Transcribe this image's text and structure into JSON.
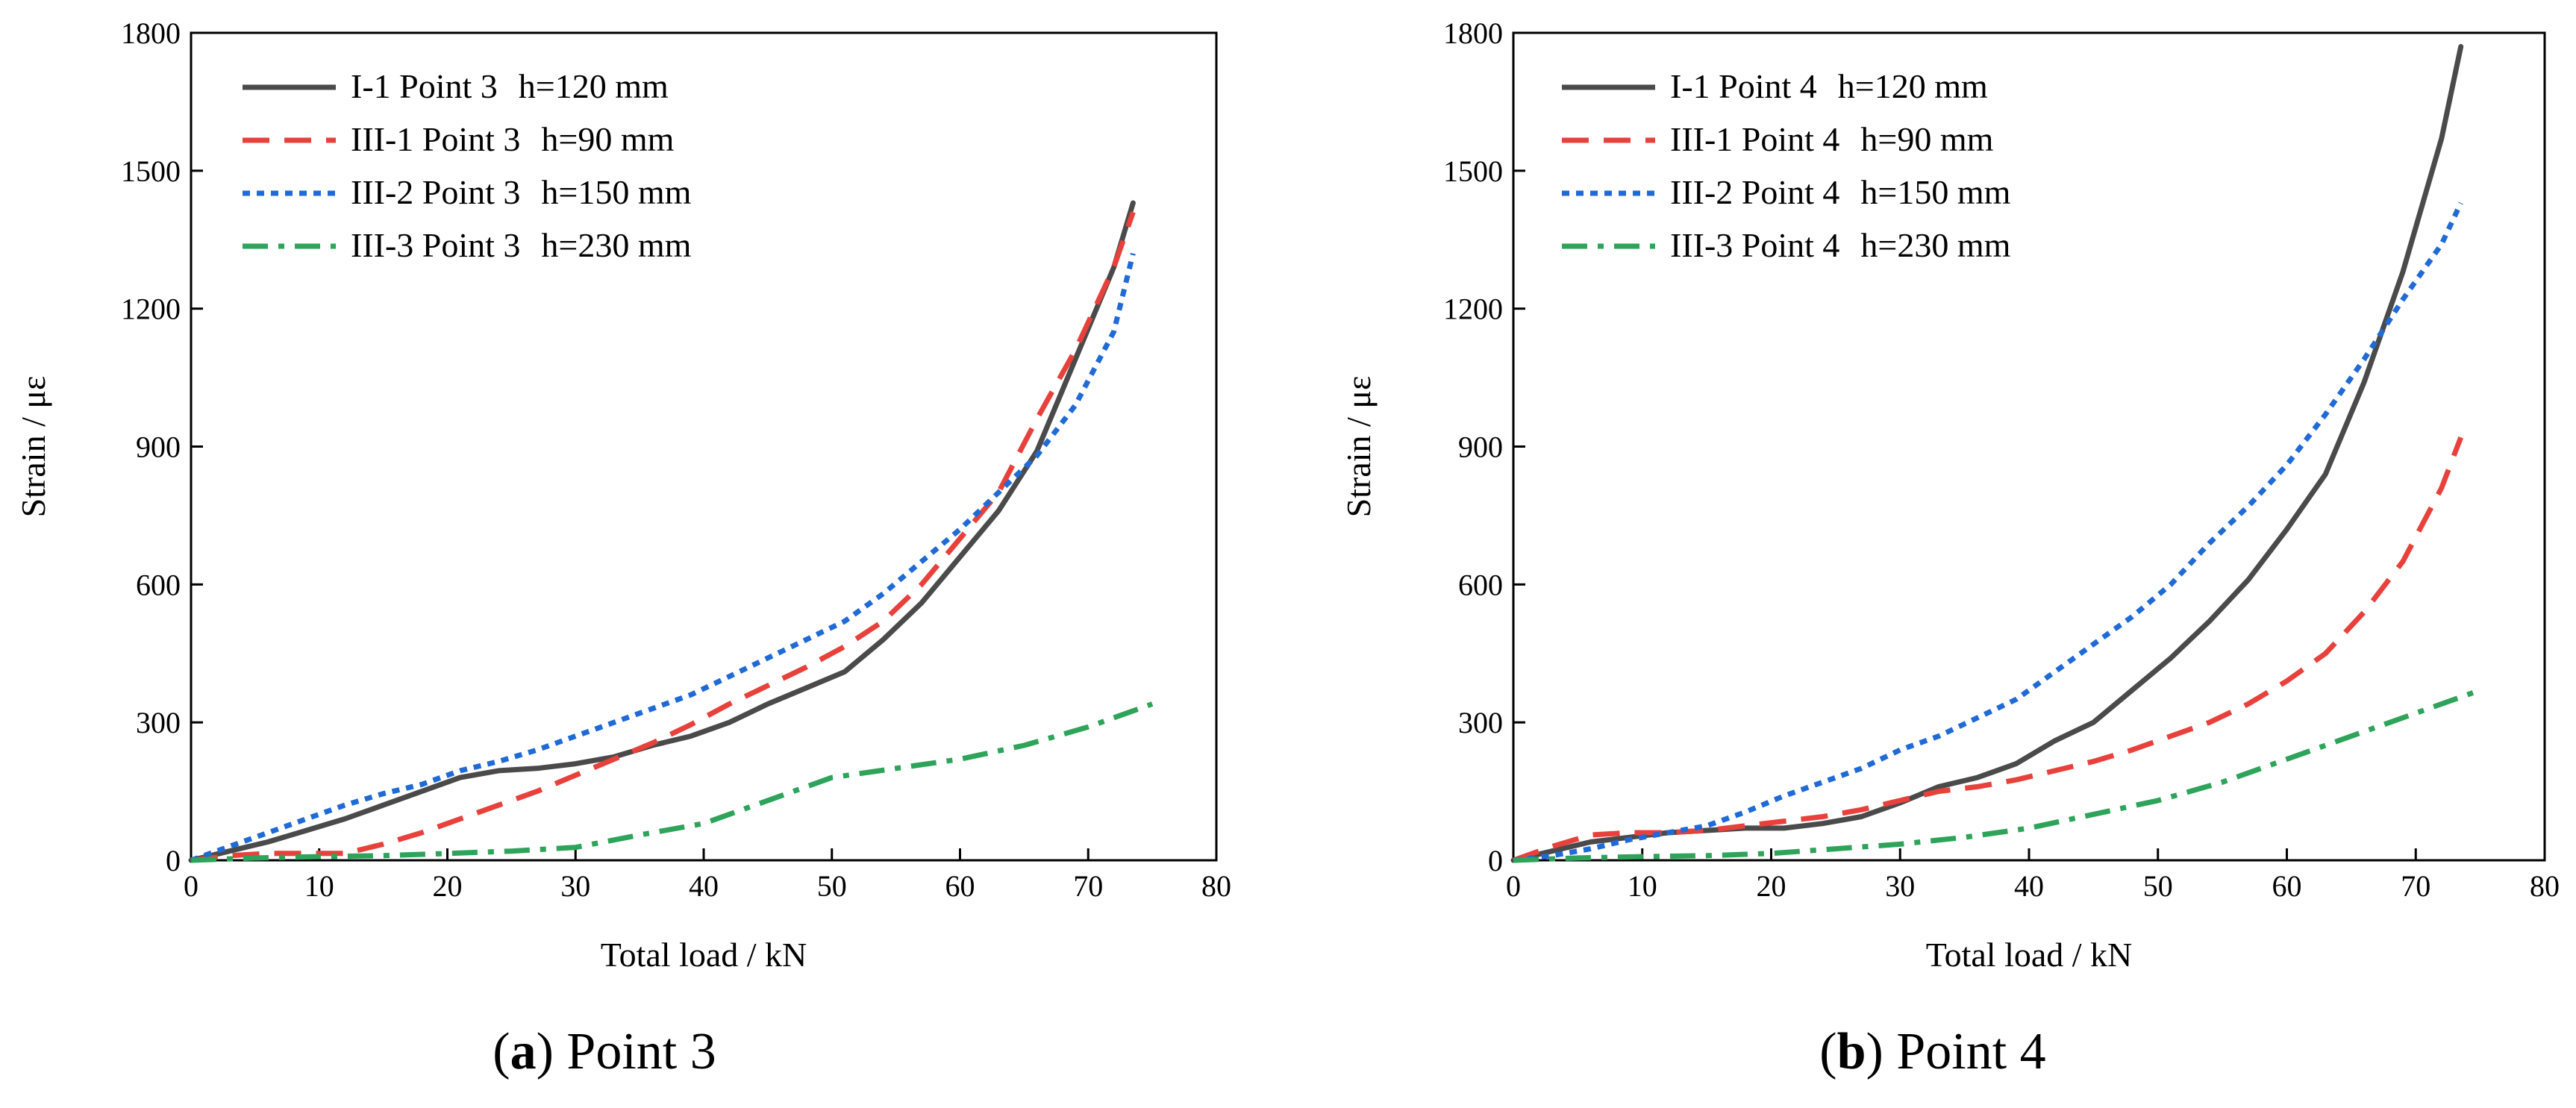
{
  "figure": {
    "panels": [
      {
        "caption_open": "(",
        "caption_letter": "a",
        "caption_close": ")",
        "caption_text": " Point 3"
      },
      {
        "caption_open": "(",
        "caption_letter": "b",
        "caption_close": ")",
        "caption_text": " Point 4"
      }
    ]
  },
  "chart_data": [
    {
      "type": "line",
      "title": "Point 3",
      "xlabel": "Total load / kN",
      "ylabel": "Strain / με",
      "xlim": [
        0,
        80
      ],
      "ylim": [
        0,
        1800
      ],
      "xticks": [
        0,
        10,
        20,
        30,
        40,
        50,
        60,
        70,
        80
      ],
      "yticks": [
        0,
        300,
        600,
        900,
        1200,
        1500,
        1800
      ],
      "grid": false,
      "legend_position": "top-left",
      "series": [
        {
          "name": "I-1 Point 3",
          "extra": "h=120 mm",
          "color": "#4a4a4a",
          "style": "solid",
          "x": [
            0,
            3,
            6,
            9,
            12,
            15,
            18,
            21,
            24,
            27,
            30,
            33,
            36,
            39,
            42,
            45,
            48,
            51,
            54,
            57,
            60,
            63,
            66,
            69,
            72,
            73.5
          ],
          "y": [
            0,
            20,
            40,
            65,
            90,
            120,
            150,
            180,
            195,
            200,
            210,
            225,
            250,
            270,
            300,
            340,
            375,
            410,
            480,
            560,
            660,
            760,
            890,
            1090,
            1290,
            1430
          ]
        },
        {
          "name": "III-1 Point 3",
          "extra": "h=90 mm",
          "color": "#e8413c",
          "style": "dash",
          "x": [
            0,
            3,
            6,
            9,
            12,
            15,
            18,
            21,
            24,
            27,
            30,
            33,
            36,
            39,
            42,
            45,
            48,
            51,
            54,
            57,
            60,
            63,
            66,
            69,
            72,
            73.5
          ],
          "y": [
            0,
            10,
            15,
            15,
            15,
            35,
            60,
            90,
            120,
            150,
            185,
            220,
            255,
            295,
            340,
            380,
            420,
            465,
            520,
            600,
            700,
            800,
            960,
            1110,
            1290,
            1410
          ]
        },
        {
          "name": "III-2 Point 3",
          "extra": "h=150 mm",
          "color": "#1f6ad6",
          "style": "dot",
          "x": [
            0,
            3,
            6,
            9,
            12,
            15,
            18,
            21,
            24,
            27,
            30,
            33,
            36,
            39,
            42,
            45,
            48,
            51,
            54,
            57,
            60,
            63,
            66,
            69,
            72,
            73.5
          ],
          "y": [
            0,
            30,
            60,
            90,
            120,
            145,
            165,
            195,
            215,
            240,
            270,
            300,
            330,
            360,
            400,
            440,
            480,
            520,
            580,
            650,
            720,
            800,
            880,
            990,
            1150,
            1320
          ]
        },
        {
          "name": "III-3 Point 3",
          "extra": "h=230 mm",
          "color": "#2ea35a",
          "style": "dashdot",
          "x": [
            0,
            5,
            10,
            15,
            20,
            25,
            30,
            35,
            40,
            45,
            50,
            55,
            60,
            65,
            70,
            75
          ],
          "y": [
            0,
            5,
            8,
            10,
            15,
            20,
            28,
            55,
            80,
            130,
            180,
            200,
            220,
            250,
            290,
            340
          ]
        }
      ]
    },
    {
      "type": "line",
      "title": "Point 4",
      "xlabel": "Total load / kN",
      "ylabel": "Strain / με",
      "xlim": [
        0,
        80
      ],
      "ylim": [
        0,
        1800
      ],
      "xticks": [
        0,
        10,
        20,
        30,
        40,
        50,
        60,
        70,
        80
      ],
      "yticks": [
        0,
        300,
        600,
        900,
        1200,
        1500,
        1800
      ],
      "grid": false,
      "legend_position": "top-left",
      "series": [
        {
          "name": "I-1 Point 4",
          "extra": "h=120 mm",
          "color": "#4a4a4a",
          "style": "solid",
          "x": [
            0,
            3,
            6,
            9,
            12,
            15,
            18,
            21,
            24,
            27,
            30,
            33,
            36,
            39,
            42,
            45,
            48,
            51,
            54,
            57,
            60,
            63,
            66,
            69,
            72,
            73.5
          ],
          "y": [
            0,
            20,
            40,
            50,
            60,
            65,
            70,
            70,
            80,
            95,
            125,
            160,
            180,
            210,
            260,
            300,
            370,
            440,
            520,
            610,
            720,
            840,
            1040,
            1280,
            1570,
            1770
          ]
        },
        {
          "name": "III-1 Point 4",
          "extra": "h=90 mm",
          "color": "#e8413c",
          "style": "dash",
          "x": [
            0,
            3,
            6,
            9,
            12,
            15,
            18,
            21,
            24,
            27,
            30,
            33,
            36,
            39,
            42,
            45,
            48,
            51,
            54,
            57,
            60,
            63,
            66,
            69,
            72,
            73.5
          ],
          "y": [
            0,
            30,
            55,
            60,
            60,
            65,
            75,
            85,
            95,
            110,
            130,
            150,
            160,
            175,
            195,
            215,
            240,
            270,
            300,
            340,
            390,
            450,
            540,
            650,
            810,
            920
          ]
        },
        {
          "name": "III-2 Point 4",
          "extra": "h=150 mm",
          "color": "#1f6ad6",
          "style": "dot",
          "x": [
            0,
            3,
            6,
            9,
            12,
            15,
            18,
            21,
            24,
            27,
            30,
            33,
            36,
            39,
            42,
            45,
            48,
            51,
            54,
            57,
            60,
            63,
            66,
            69,
            72,
            73.5
          ],
          "y": [
            0,
            10,
            25,
            45,
            60,
            75,
            105,
            140,
            170,
            200,
            240,
            270,
            310,
            350,
            410,
            470,
            530,
            600,
            690,
            770,
            860,
            970,
            1090,
            1220,
            1340,
            1430
          ]
        },
        {
          "name": "III-3 Point 4",
          "extra": "h=230 mm",
          "color": "#2ea35a",
          "style": "dashdot",
          "x": [
            0,
            5,
            10,
            15,
            20,
            25,
            30,
            35,
            40,
            45,
            50,
            55,
            60,
            65,
            70,
            75
          ],
          "y": [
            0,
            5,
            8,
            10,
            15,
            25,
            35,
            50,
            70,
            100,
            130,
            170,
            220,
            270,
            320,
            370
          ]
        }
      ]
    }
  ]
}
